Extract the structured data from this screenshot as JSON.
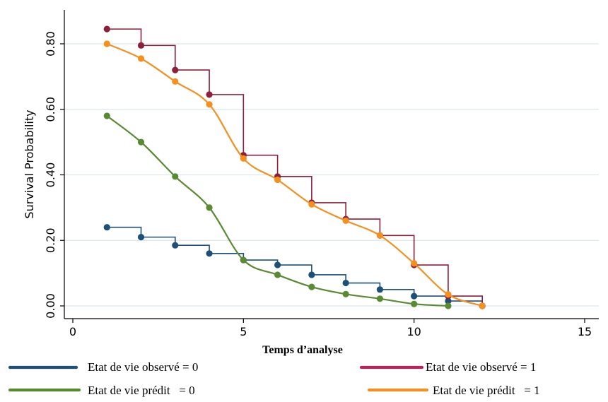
{
  "chart_data": {
    "type": "line",
    "title": "",
    "xlabel": "Temps d’analyse",
    "ylabel": "Survival Probability",
    "xlim": [
      0,
      15
    ],
    "ylim": [
      0,
      0.85
    ],
    "xticks": [
      "0",
      "5",
      "10",
      "15"
    ],
    "yticks": [
      "0.00",
      "0.20",
      "0.40",
      "0.60",
      "0.80"
    ],
    "grid": true,
    "legend_position": "bottom",
    "series": [
      {
        "name": "Etat de vie observé = 0",
        "style": "step",
        "color": "#1d4f79",
        "x": [
          1,
          2,
          3,
          4,
          5,
          6,
          7,
          8,
          9,
          10,
          11,
          12
        ],
        "y": [
          0.24,
          0.21,
          0.185,
          0.16,
          0.14,
          0.125,
          0.095,
          0.07,
          0.05,
          0.03,
          0.015,
          0.0
        ]
      },
      {
        "name": "Etat de vie observé = 1",
        "style": "step",
        "color": "#8e1f3a",
        "x": [
          1,
          2,
          3,
          4,
          5,
          6,
          7,
          8,
          9,
          10,
          11,
          12
        ],
        "y": [
          0.845,
          0.795,
          0.72,
          0.645,
          0.46,
          0.395,
          0.315,
          0.265,
          0.215,
          0.125,
          0.03,
          0.0
        ]
      },
      {
        "name": "Etat de vie prédit   = 0",
        "style": "line",
        "color": "#5a8a32",
        "x": [
          1,
          2,
          3,
          4,
          5,
          6,
          7,
          8,
          9,
          10,
          11
        ],
        "y": [
          0.58,
          0.5,
          0.395,
          0.3,
          0.14,
          0.095,
          0.058,
          0.036,
          0.022,
          0.006,
          0.0
        ]
      },
      {
        "name": "Etat de vie prédit   = 1",
        "style": "line",
        "color": "#f5901e",
        "x": [
          1,
          2,
          3,
          4,
          5,
          6,
          7,
          8,
          9,
          10,
          11,
          12
        ],
        "y": [
          0.8,
          0.755,
          0.685,
          0.615,
          0.45,
          0.385,
          0.31,
          0.26,
          0.215,
          0.13,
          0.035,
          0.0
        ]
      }
    ]
  },
  "colors": {
    "plot_background": "#ffffff",
    "gridline": "#dbe6ee",
    "outer_background": "#ffffff"
  }
}
